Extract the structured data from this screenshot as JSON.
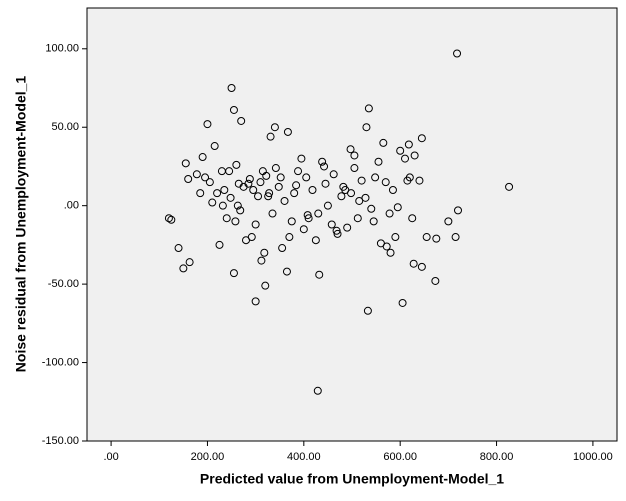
{
  "chart_data": {
    "type": "scatter",
    "x_label": "Predicted value from Unemployment-Model_1",
    "y_label": "Noise residual from Unemployment-Model_1",
    "xlim": [
      -50,
      1050
    ],
    "ylim": [
      -150,
      126
    ],
    "xticks": [
      {
        "value": 0,
        "label": ".00"
      },
      {
        "value": 200,
        "label": "200.00"
      },
      {
        "value": 400,
        "label": "400.00"
      },
      {
        "value": 600,
        "label": "600.00"
      },
      {
        "value": 800,
        "label": "800.00"
      },
      {
        "value": 1000,
        "label": "1000.00"
      }
    ],
    "yticks": [
      {
        "value": -150,
        "label": "-150.00"
      },
      {
        "value": -100,
        "label": "-100.00"
      },
      {
        "value": -50,
        "label": "-50.00"
      },
      {
        "value": 0,
        "label": ".00"
      },
      {
        "value": 50,
        "label": "50.00"
      },
      {
        "value": 100,
        "label": "100.00"
      }
    ],
    "color": "#000000",
    "background": "#f0f0f0",
    "x": [
      718,
      826,
      263,
      429,
      533,
      250,
      255,
      270,
      200,
      340,
      367,
      535,
      530,
      645,
      215,
      618,
      600,
      630,
      565,
      497,
      505,
      331,
      300,
      320,
      255,
      365,
      432,
      605,
      645,
      628,
      673,
      150,
      163,
      140,
      715,
      720,
      700,
      675,
      590,
      580,
      120,
      125,
      155,
      160,
      190,
      195,
      205,
      220,
      230,
      235,
      240,
      248,
      260,
      268,
      275,
      280,
      288,
      295,
      300,
      305,
      310,
      315,
      318,
      322,
      328,
      335,
      342,
      348,
      355,
      360,
      370,
      375,
      380,
      388,
      395,
      400,
      405,
      410,
      418,
      425,
      430,
      438,
      445,
      450,
      458,
      462,
      470,
      478,
      482,
      490,
      498,
      505,
      512,
      520,
      528,
      540,
      548,
      555,
      560,
      570,
      578,
      585,
      595,
      610,
      620,
      625,
      640,
      655,
      210,
      225,
      245,
      258,
      285,
      292,
      312,
      326,
      352,
      384,
      408,
      442,
      468,
      486,
      515,
      545,
      572,
      615,
      185,
      178,
      232,
      265
    ],
    "values": [
      97,
      12,
      0,
      -118,
      -67,
      75,
      61,
      54,
      52,
      50,
      47,
      62,
      50,
      43,
      38,
      39,
      35,
      32,
      40,
      36,
      32,
      44,
      -61,
      -51,
      -43,
      -42,
      -44,
      -62,
      -39,
      -37,
      -48,
      -40,
      -36,
      -27,
      -20,
      -3,
      -10,
      -21,
      -20,
      -30,
      -8,
      -9,
      27,
      17,
      31,
      18,
      15,
      8,
      22,
      10,
      -8,
      5,
      26,
      -3,
      12,
      -22,
      17,
      10,
      -12,
      6,
      15,
      22,
      -30,
      19,
      8,
      -5,
      24,
      12,
      -27,
      3,
      -20,
      -10,
      8,
      22,
      30,
      -15,
      18,
      -8,
      10,
      -22,
      -5,
      28,
      14,
      0,
      -12,
      20,
      -18,
      6,
      12,
      -14,
      8,
      24,
      -8,
      16,
      5,
      -2,
      18,
      28,
      -24,
      15,
      -5,
      10,
      -1,
      30,
      18,
      -8,
      16,
      -20,
      2,
      -25,
      22,
      -10,
      14,
      -20,
      -35,
      6,
      18,
      13,
      -6,
      25,
      -16,
      10,
      3,
      -10,
      -26,
      16,
      8,
      20,
      0,
      14
    ]
  }
}
